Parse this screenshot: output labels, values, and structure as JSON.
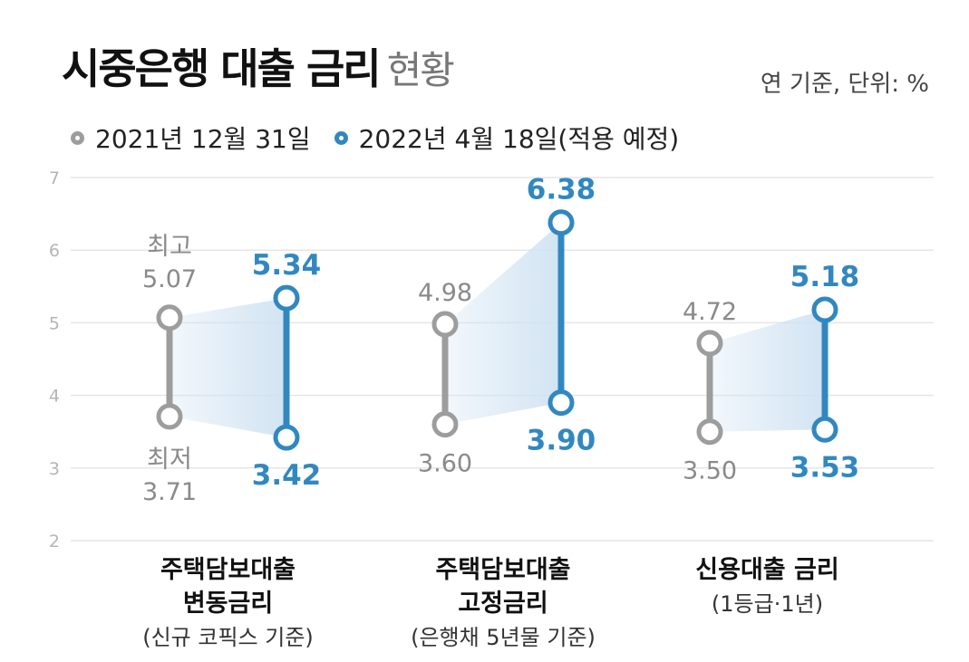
{
  "header": {
    "title": "시중은행 대출 금리",
    "subtitle": "현황",
    "unit_note": "연 기준, 단위: %"
  },
  "legend": [
    {
      "label": "2021년 12월 31일",
      "color": "#9d9d9d"
    },
    {
      "label": "2022년 4월 18일(적용 예정)",
      "color": "#3188c0"
    }
  ],
  "colors": {
    "old": "#9d9d9d",
    "new": "#3188c0",
    "band": "#cfe2f2",
    "grid": "#e6e6e6",
    "old_label": "#8a8a8a"
  },
  "chart_data": {
    "type": "dumbbell-range",
    "ylim": [
      2,
      7
    ],
    "yticks": [
      2,
      3,
      4,
      5,
      6,
      7
    ],
    "grid": true,
    "series": [
      {
        "name": "2021년 12월 31일",
        "key": "old"
      },
      {
        "name": "2022년 4월 18일(적용 예정)",
        "key": "new"
      }
    ],
    "groups": [
      {
        "label_lines": [
          "주택담보대출",
          "변동금리"
        ],
        "note": "(신규 코픽스 기준)",
        "old": {
          "high": 5.07,
          "low": 3.71,
          "high_text": "5.07",
          "low_text": "3.71",
          "high_caption": "최고",
          "low_caption": "최저"
        },
        "new": {
          "high": 5.34,
          "low": 3.42,
          "high_text": "5.34",
          "low_text": "3.42"
        }
      },
      {
        "label_lines": [
          "주택담보대출",
          "고정금리"
        ],
        "note": "(은행채 5년물 기준)",
        "old": {
          "high": 4.98,
          "low": 3.6,
          "high_text": "4.98",
          "low_text": "3.60"
        },
        "new": {
          "high": 6.38,
          "low": 3.9,
          "high_text": "6.38",
          "low_text": "3.90"
        }
      },
      {
        "label_lines": [
          "신용대출 금리"
        ],
        "note": "(1등급·1년)",
        "old": {
          "high": 4.72,
          "low": 3.5,
          "high_text": "4.72",
          "low_text": "3.50"
        },
        "new": {
          "high": 5.18,
          "low": 3.53,
          "high_text": "5.18",
          "low_text": "3.53"
        }
      }
    ]
  }
}
